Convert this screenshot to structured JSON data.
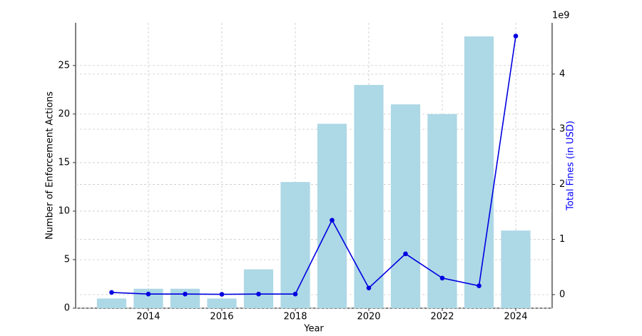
{
  "chart_data": {
    "type": "combo",
    "x_label": "Year",
    "y_label": "Number of Enforcement Actions",
    "y2_label": "Total Fines (in USD)",
    "y2_offset_label": "1e9",
    "x": [
      2013,
      2014,
      2015,
      2016,
      2017,
      2018,
      2019,
      2020,
      2021,
      2022,
      2023,
      2024
    ],
    "series": [
      {
        "name": "Number of Enforcement Actions",
        "type": "bar",
        "color": "#add8e6",
        "axis": "y",
        "values": [
          1,
          2,
          2,
          1,
          4,
          13,
          19,
          23,
          21,
          20,
          28,
          8
        ]
      },
      {
        "name": "Total Fines (in USD)",
        "type": "line",
        "color": "#0000e0",
        "axis": "y2",
        "values": [
          40000000,
          10000000,
          10000000,
          5000000,
          10000000,
          10000000,
          1350000000,
          120000000,
          740000000,
          300000000,
          160000000,
          4690000000
        ]
      }
    ],
    "xlim": [
      2012.02,
      2024.99
    ],
    "xticks": [
      2014,
      2016,
      2018,
      2020,
      2022,
      2024
    ],
    "ylim": [
      0,
      29.4
    ],
    "yticks": [
      0,
      5,
      10,
      15,
      20,
      25
    ],
    "y2lim": [
      -246000000,
      4930000000
    ],
    "y2ticks": [
      {
        "value": 0,
        "label": "0"
      },
      {
        "value": 1000000000,
        "label": "1"
      },
      {
        "value": 2000000000,
        "label": "2"
      },
      {
        "value": 3000000000,
        "label": "3"
      },
      {
        "value": 4000000000,
        "label": "4"
      }
    ],
    "bar_width": 0.8,
    "grid": true
  }
}
